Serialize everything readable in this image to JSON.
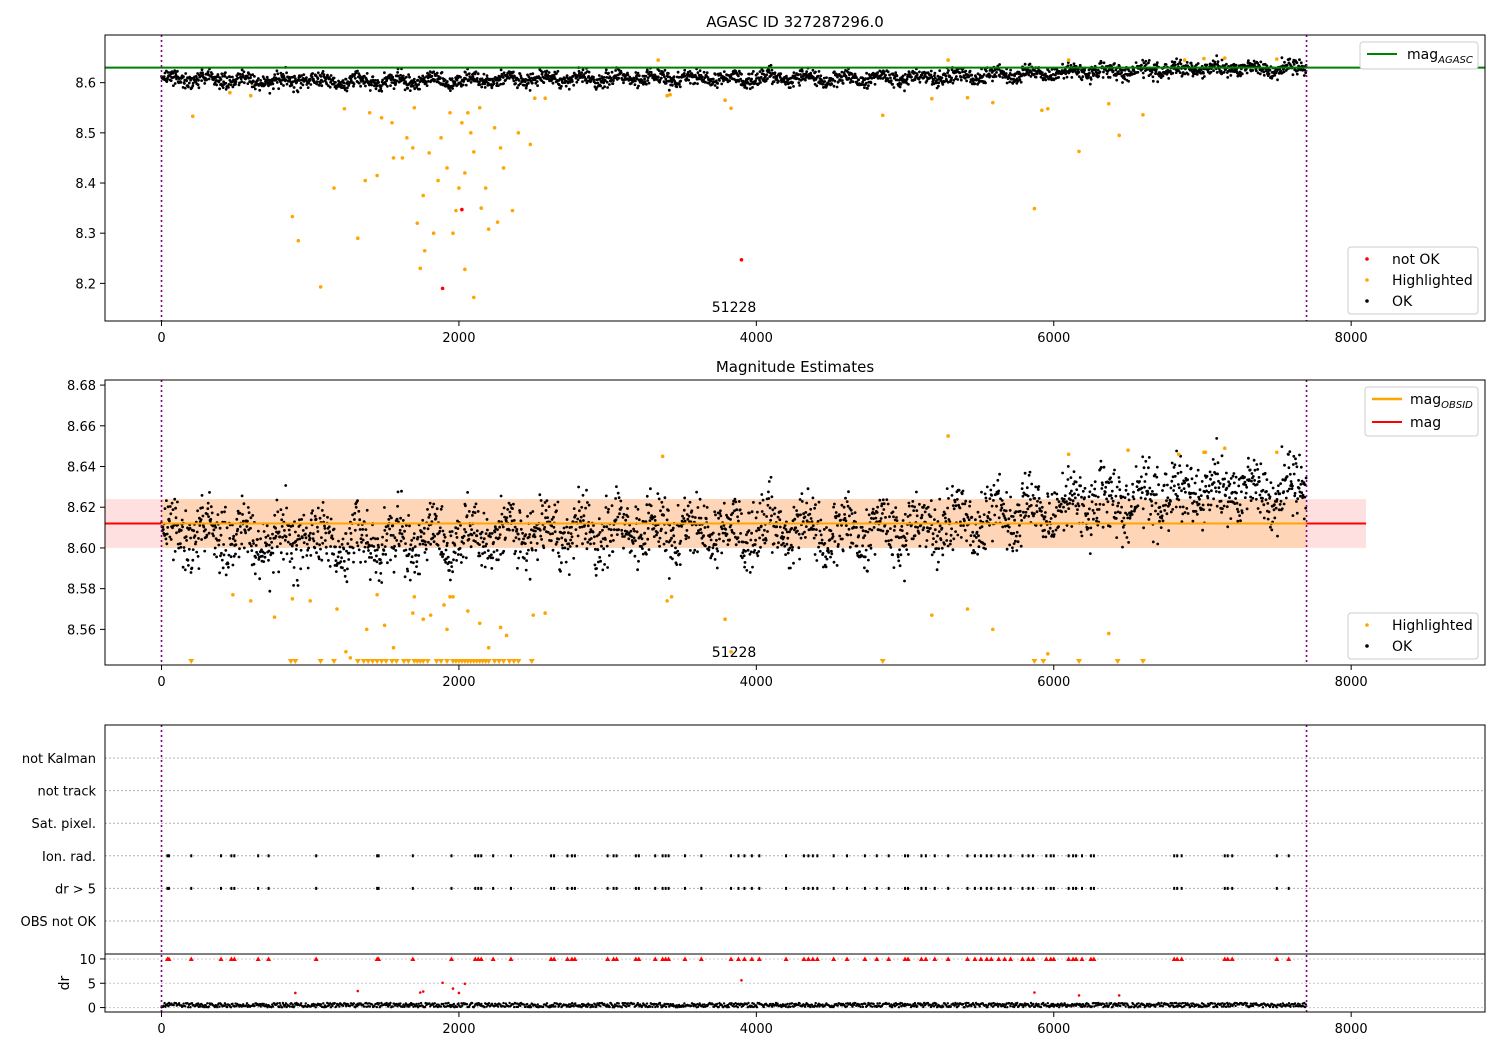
{
  "chart_data": [
    {
      "type": "scatter",
      "title": "AGASC ID 327287296.0",
      "xlim": [
        -380,
        8900
      ],
      "ylim": [
        8.125,
        8.695
      ],
      "xticks": [
        0,
        2000,
        4000,
        6000,
        8000
      ],
      "yticks": [
        8.2,
        8.3,
        8.4,
        8.5,
        8.6
      ],
      "xtick_labels": [
        "0",
        "2000",
        "4000",
        "6000",
        "8000"
      ],
      "ytick_labels": [
        "8.2",
        "8.3",
        "8.4",
        "8.5",
        "8.6"
      ],
      "obsid_label": "51228",
      "obsid_label_x": 3850,
      "obs_bounds": [
        0,
        7700
      ],
      "mag_agasc": 8.63,
      "legend_line": {
        "label": "mag",
        "sub": "AGASC",
        "color": "#008000",
        "position": "top-right"
      },
      "legend_points": {
        "position": "bottom-right",
        "entries": [
          {
            "label": "not OK",
            "color": "#ff0000"
          },
          {
            "label": "Highlighted",
            "color": "#ffa500"
          },
          {
            "label": "OK",
            "color": "#000000"
          }
        ]
      },
      "ok_trend": [
        [
          0,
          8.608
        ],
        [
          500,
          8.603
        ],
        [
          1000,
          8.604
        ],
        [
          1500,
          8.603
        ],
        [
          2000,
          8.604
        ],
        [
          2500,
          8.606
        ],
        [
          3000,
          8.608
        ],
        [
          3500,
          8.609
        ],
        [
          4000,
          8.61
        ],
        [
          4500,
          8.608
        ],
        [
          5000,
          8.608
        ],
        [
          5500,
          8.614
        ],
        [
          6000,
          8.62
        ],
        [
          6500,
          8.624
        ],
        [
          7000,
          8.628
        ],
        [
          7700,
          8.627
        ]
      ],
      "ok_scatter_amplitude": 0.022,
      "highlighted": [
        [
          210,
          8.533
        ],
        [
          460,
          8.58
        ],
        [
          600,
          8.574
        ],
        [
          880,
          8.333
        ],
        [
          920,
          8.285
        ],
        [
          1070,
          8.193
        ],
        [
          1160,
          8.39
        ],
        [
          1230,
          8.548
        ],
        [
          1320,
          8.29
        ],
        [
          1370,
          8.405
        ],
        [
          1400,
          8.54
        ],
        [
          1450,
          8.415
        ],
        [
          1480,
          8.53
        ],
        [
          1550,
          8.52
        ],
        [
          1560,
          8.45
        ],
        [
          1620,
          8.45
        ],
        [
          1650,
          8.49
        ],
        [
          1690,
          8.47
        ],
        [
          1700,
          8.55
        ],
        [
          1720,
          8.32
        ],
        [
          1740,
          8.23
        ],
        [
          1760,
          8.375
        ],
        [
          1770,
          8.265
        ],
        [
          1800,
          8.46
        ],
        [
          1830,
          8.3
        ],
        [
          1860,
          8.405
        ],
        [
          1880,
          8.49
        ],
        [
          1920,
          8.43
        ],
        [
          1940,
          8.54
        ],
        [
          1960,
          8.3
        ],
        [
          1980,
          8.345
        ],
        [
          2000,
          8.39
        ],
        [
          2020,
          8.52
        ],
        [
          2040,
          8.42
        ],
        [
          2040,
          8.228
        ],
        [
          2060,
          8.54
        ],
        [
          2080,
          8.5
        ],
        [
          2100,
          8.462
        ],
        [
          2100,
          8.172
        ],
        [
          2140,
          8.55
        ],
        [
          2150,
          8.35
        ],
        [
          2180,
          8.39
        ],
        [
          2200,
          8.308
        ],
        [
          2240,
          8.51
        ],
        [
          2260,
          8.322
        ],
        [
          2280,
          8.47
        ],
        [
          2300,
          8.43
        ],
        [
          2360,
          8.345
        ],
        [
          2400,
          8.5
        ],
        [
          2480,
          8.477
        ],
        [
          2510,
          8.569
        ],
        [
          2580,
          8.569
        ],
        [
          3340,
          8.645
        ],
        [
          3400,
          8.574
        ],
        [
          3420,
          8.576
        ],
        [
          3790,
          8.565
        ],
        [
          3830,
          8.549
        ],
        [
          4850,
          8.535
        ],
        [
          5180,
          8.568
        ],
        [
          5290,
          8.645
        ],
        [
          5420,
          8.57
        ],
        [
          5590,
          8.56
        ],
        [
          5870,
          8.349
        ],
        [
          5920,
          8.545
        ],
        [
          5960,
          8.548
        ],
        [
          6100,
          8.645
        ],
        [
          6170,
          8.463
        ],
        [
          6370,
          8.558
        ],
        [
          6440,
          8.495
        ],
        [
          6600,
          8.536
        ],
        [
          6880,
          8.645
        ],
        [
          7010,
          8.648
        ],
        [
          7150,
          8.649
        ],
        [
          7500,
          8.647
        ]
      ],
      "not_ok": [
        [
          1890,
          8.19
        ],
        [
          2020,
          8.347
        ],
        [
          3900,
          8.247
        ]
      ],
      "xlabel": "",
      "ylabel": ""
    },
    {
      "type": "scatter",
      "title": "Magnitude Estimates",
      "xlim": [
        -380,
        8900
      ],
      "ylim": [
        8.5425,
        8.6825
      ],
      "xticks": [
        0,
        2000,
        4000,
        6000,
        8000
      ],
      "yticks": [
        8.56,
        8.58,
        8.6,
        8.62,
        8.64,
        8.66,
        8.68
      ],
      "xtick_labels": [
        "0",
        "2000",
        "4000",
        "6000",
        "8000"
      ],
      "ytick_labels": [
        "8.56",
        "8.58",
        "8.60",
        "8.62",
        "8.64",
        "8.66",
        "8.68"
      ],
      "obsid_label": "51228",
      "obsid_label_x": 3850,
      "obs_bounds": [
        0,
        7700
      ],
      "mag": 8.612,
      "mag_band": [
        8.6,
        8.624
      ],
      "mag_obsid": 8.612,
      "band_x": [
        -380,
        8100
      ],
      "legend_lines": {
        "position": "top-right",
        "entries": [
          {
            "label": "mag",
            "sub": "OBSID",
            "color": "#ffa500"
          },
          {
            "label": "mag",
            "sub": "",
            "color": "#ff0000"
          }
        ]
      },
      "legend_points": {
        "position": "bottom-right",
        "entries": [
          {
            "label": "Highlighted",
            "color": "#ffa500"
          },
          {
            "label": "OK",
            "color": "#000000"
          }
        ]
      },
      "ok_trend": [
        [
          0,
          8.608
        ],
        [
          500,
          8.603
        ],
        [
          1000,
          8.604
        ],
        [
          1500,
          8.603
        ],
        [
          2000,
          8.604
        ],
        [
          2500,
          8.606
        ],
        [
          3000,
          8.608
        ],
        [
          3500,
          8.609
        ],
        [
          4000,
          8.61
        ],
        [
          4500,
          8.608
        ],
        [
          5000,
          8.608
        ],
        [
          5500,
          8.614
        ],
        [
          6000,
          8.62
        ],
        [
          6500,
          8.624
        ],
        [
          7000,
          8.628
        ],
        [
          7700,
          8.627
        ]
      ],
      "ok_scatter_amplitude": 0.022,
      "highlighted": [
        [
          480,
          8.577
        ],
        [
          600,
          8.574
        ],
        [
          760,
          8.566
        ],
        [
          880,
          8.575
        ],
        [
          1000,
          8.574
        ],
        [
          1180,
          8.57
        ],
        [
          1240,
          8.549
        ],
        [
          1270,
          8.546
        ],
        [
          1380,
          8.56
        ],
        [
          1450,
          8.577
        ],
        [
          1500,
          8.562
        ],
        [
          1560,
          8.551
        ],
        [
          1690,
          8.568
        ],
        [
          1700,
          8.576
        ],
        [
          1760,
          8.565
        ],
        [
          1810,
          8.567
        ],
        [
          1900,
          8.572
        ],
        [
          1920,
          8.56
        ],
        [
          1940,
          8.576
        ],
        [
          1960,
          8.576
        ],
        [
          2060,
          8.569
        ],
        [
          2140,
          8.563
        ],
        [
          2200,
          8.551
        ],
        [
          2280,
          8.561
        ],
        [
          2320,
          8.557
        ],
        [
          2500,
          8.567
        ],
        [
          2580,
          8.568
        ],
        [
          3370,
          8.645
        ],
        [
          3400,
          8.574
        ],
        [
          3430,
          8.576
        ],
        [
          3790,
          8.565
        ],
        [
          3830,
          8.549
        ],
        [
          5180,
          8.567
        ],
        [
          5290,
          8.655
        ],
        [
          5420,
          8.57
        ],
        [
          5590,
          8.56
        ],
        [
          5960,
          8.548
        ],
        [
          6100,
          8.646
        ],
        [
          6370,
          8.558
        ],
        [
          6500,
          8.648
        ],
        [
          6840,
          8.646
        ],
        [
          7010,
          8.647
        ],
        [
          7020,
          8.647
        ],
        [
          7150,
          8.649
        ],
        [
          7500,
          8.647
        ]
      ],
      "below_range_markers": [
        200,
        870,
        900,
        1070,
        1160,
        1320,
        1360,
        1390,
        1420,
        1450,
        1480,
        1510,
        1550,
        1580,
        1630,
        1660,
        1700,
        1720,
        1740,
        1760,
        1790,
        1850,
        1880,
        1920,
        1960,
        1980,
        2000,
        2020,
        2040,
        2060,
        2080,
        2100,
        2120,
        2140,
        2160,
        2180,
        2200,
        2240,
        2270,
        2300,
        2340,
        2370,
        2400,
        2490,
        4850,
        5870,
        5930,
        6170,
        6430,
        6600
      ],
      "xlabel": "",
      "ylabel": ""
    },
    {
      "type": "scatter",
      "title": "",
      "xlim": [
        -380,
        8900
      ],
      "xticks": [
        0,
        2000,
        4000,
        6000,
        8000
      ],
      "xtick_labels": [
        "0",
        "2000",
        "4000",
        "6000",
        "8000"
      ],
      "obs_bounds": [
        0,
        7700
      ],
      "flag_rows": [
        "not Kalman",
        "not track",
        "Sat. pixel.",
        "Ion. rad.",
        "dr > 5",
        "OBS not OK"
      ],
      "flag_events": {
        "Ion. rad.": [
          40,
          50,
          200,
          400,
          470,
          490,
          650,
          720,
          1040,
          1450,
          1460,
          1690,
          1950,
          2110,
          2130,
          2150,
          2230,
          2350,
          2620,
          2640,
          2730,
          2760,
          2780,
          3000,
          3040,
          3060,
          3190,
          3210,
          3320,
          3370,
          3390,
          3410,
          3520,
          3630,
          3830,
          3880,
          3920,
          3970,
          4020,
          4200,
          4320,
          4350,
          4380,
          4410,
          4520,
          4610,
          4730,
          4810,
          4890,
          5000,
          5020,
          5110,
          5140,
          5200,
          5290,
          5420,
          5470,
          5510,
          5550,
          5580,
          5630,
          5670,
          5710,
          5790,
          5830,
          5860,
          5950,
          5980,
          6000,
          6100,
          6130,
          6150,
          6190,
          6250,
          6270,
          6810,
          6830,
          6860,
          7150,
          7170,
          7200,
          7500,
          7580
        ],
        "dr > 5": [
          40,
          50,
          200,
          400,
          470,
          490,
          650,
          720,
          1040,
          1450,
          1460,
          1690,
          1950,
          2110,
          2130,
          2150,
          2230,
          2350,
          2620,
          2640,
          2730,
          2760,
          2780,
          3000,
          3040,
          3060,
          3190,
          3210,
          3320,
          3370,
          3390,
          3410,
          3520,
          3630,
          3830,
          3880,
          3920,
          3970,
          4020,
          4200,
          4320,
          4350,
          4380,
          4410,
          4520,
          4610,
          4730,
          4810,
          4890,
          5000,
          5020,
          5110,
          5140,
          5200,
          5290,
          5420,
          5470,
          5510,
          5550,
          5580,
          5630,
          5670,
          5710,
          5790,
          5830,
          5860,
          5950,
          5980,
          6000,
          6100,
          6130,
          6150,
          6190,
          6250,
          6270,
          6810,
          6830,
          6860,
          7150,
          7170,
          7200,
          7500,
          7580
        ]
      },
      "dr_ylabel": "dr",
      "dr_ylim": [
        -0.5,
        10.4
      ],
      "dr_yticks": [
        0,
        5,
        10
      ],
      "dr_ytick_labels": [
        "0",
        "5",
        "10"
      ],
      "dr_clip_value": 10,
      "dr_baseline": 0.5,
      "dr_spikes": [
        [
          900,
          3.0
        ],
        [
          1320,
          3.4
        ],
        [
          1740,
          3.1
        ],
        [
          1760,
          3.3
        ],
        [
          1890,
          5.1
        ],
        [
          1960,
          3.9
        ],
        [
          2000,
          3.0
        ],
        [
          2040,
          4.9
        ],
        [
          3900,
          5.6
        ],
        [
          5870,
          3.1
        ],
        [
          6170,
          2.5
        ],
        [
          6440,
          2.5
        ]
      ],
      "dr_clipped": [
        40,
        50,
        200,
        400,
        470,
        490,
        650,
        720,
        1040,
        1450,
        1460,
        1690,
        1950,
        2110,
        2130,
        2150,
        2230,
        2350,
        2620,
        2640,
        2730,
        2760,
        2780,
        3000,
        3040,
        3060,
        3190,
        3210,
        3320,
        3370,
        3390,
        3410,
        3520,
        3630,
        3830,
        3880,
        3920,
        3970,
        4020,
        4200,
        4320,
        4350,
        4380,
        4410,
        4520,
        4610,
        4730,
        4810,
        4890,
        5000,
        5020,
        5110,
        5140,
        5200,
        5290,
        5420,
        5470,
        5510,
        5550,
        5580,
        5630,
        5670,
        5710,
        5790,
        5830,
        5860,
        5950,
        5980,
        6000,
        6100,
        6130,
        6150,
        6190,
        6250,
        6270,
        6810,
        6830,
        6860,
        7150,
        7170,
        7200,
        7500,
        7580
      ]
    }
  ]
}
